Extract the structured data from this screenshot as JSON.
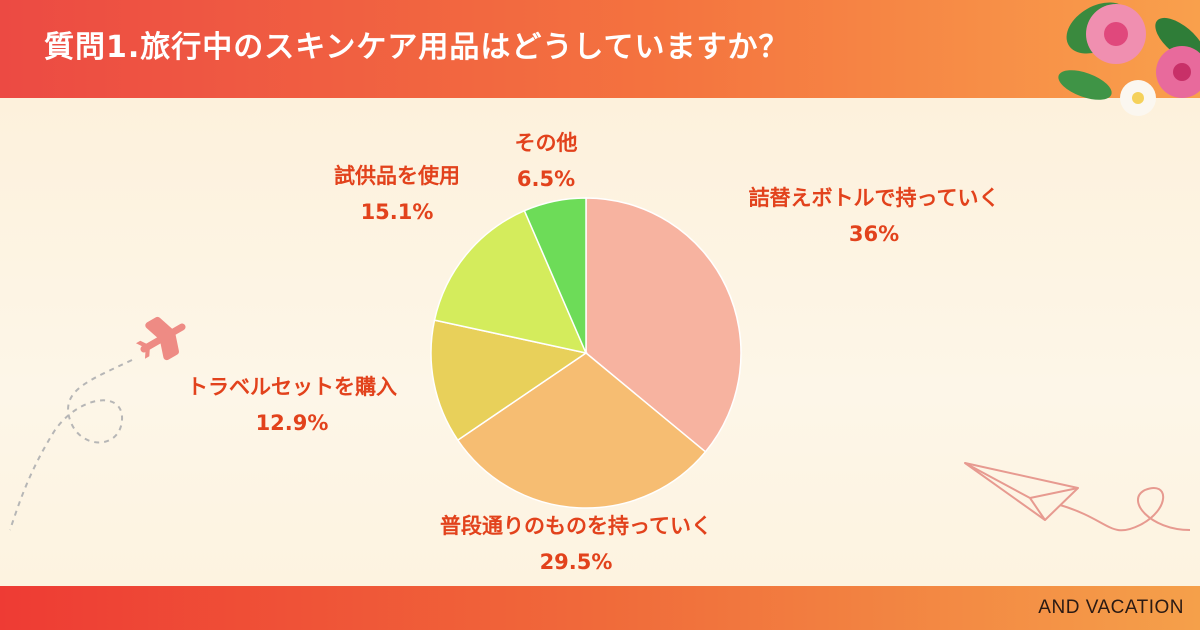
{
  "header": {
    "title": "質問1.旅行中のスキンケア用品はどうしていますか？"
  },
  "footer": {
    "brand": "AND VACATION"
  },
  "colors": {
    "label": "#e2421c",
    "header_start": "#ec4a43",
    "header_end": "#f9a04c"
  },
  "chart_data": {
    "type": "pie",
    "title": "",
    "start": "top",
    "direction": "clockwise",
    "slices": [
      {
        "label": "詰替えボトルで持っていく",
        "value_label": "36%",
        "value": 36,
        "color": "#f7b3a0"
      },
      {
        "label": "普段通りのものを持っていく",
        "value_label": "29.5%",
        "value": 29.5,
        "color": "#f6bd72"
      },
      {
        "label": "トラベルセットを購入",
        "value_label": "12.9%",
        "value": 12.9,
        "color": "#e8d05a"
      },
      {
        "label": "試供品を使用",
        "value_label": "15.1%",
        "value": 15.1,
        "color": "#d4ec5c"
      },
      {
        "label": "その他",
        "value_label": "6.5%",
        "value": 6.5,
        "color": "#6ddc58"
      }
    ]
  }
}
